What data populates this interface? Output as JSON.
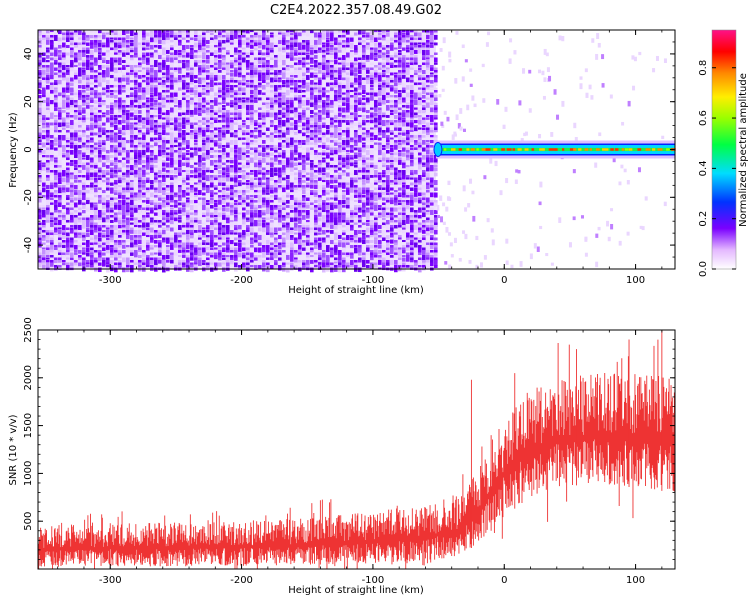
{
  "title": "C2E4.2022.357.08.49.G02",
  "chart_data": [
    {
      "type": "heatmap",
      "xlabel": "Height of straight line (km)",
      "ylabel": "Frequency (Hz)",
      "xlim": [
        -355,
        130
      ],
      "ylim": [
        -50,
        50
      ],
      "x_ticks": [
        -300,
        -200,
        -100,
        0,
        100
      ],
      "y_ticks": [
        -40,
        -20,
        0,
        20,
        40
      ],
      "noise_region_x": [
        -355,
        -52
      ],
      "signal_band": {
        "x_start": -52,
        "x_end": 130,
        "frequency_center": 0,
        "frequency_halfwidth": 2.5
      },
      "colorbar": {
        "label": "Normalized spectral amplitude",
        "range": [
          0,
          0.95
        ],
        "ticks": [
          0.0,
          0.2,
          0.4,
          0.6,
          0.8
        ],
        "tick_labels": [
          "0.0",
          "0.2",
          "0.4",
          "0.6",
          "0.8"
        ]
      }
    },
    {
      "type": "line",
      "xlabel": "Height of straight line (km)",
      "ylabel": "SNR (10 * v/v)",
      "xlim": [
        -355,
        130
      ],
      "ylim": [
        0,
        2500
      ],
      "x_ticks": [
        -300,
        -200,
        -100,
        0,
        100
      ],
      "y_ticks": [
        500,
        1000,
        1500,
        2000,
        2500
      ],
      "color": "#ee3333",
      "envelope": [
        {
          "x": -355,
          "low": 20,
          "high": 450
        },
        {
          "x": -300,
          "low": 25,
          "high": 480
        },
        {
          "x": -200,
          "low": 30,
          "high": 500
        },
        {
          "x": -150,
          "low": 40,
          "high": 540
        },
        {
          "x": -100,
          "low": 60,
          "high": 600
        },
        {
          "x": -60,
          "low": 80,
          "high": 680
        },
        {
          "x": -35,
          "low": 120,
          "high": 780
        },
        {
          "x": -22,
          "low": 250,
          "high": 1000
        },
        {
          "x": -10,
          "low": 400,
          "high": 1350
        },
        {
          "x": 0,
          "low": 550,
          "high": 1600
        },
        {
          "x": 20,
          "low": 750,
          "high": 1900
        },
        {
          "x": 40,
          "low": 850,
          "high": 2000
        },
        {
          "x": 70,
          "low": 900,
          "high": 2050
        },
        {
          "x": 100,
          "low": 850,
          "high": 2050
        },
        {
          "x": 130,
          "low": 800,
          "high": 2000
        }
      ]
    }
  ]
}
